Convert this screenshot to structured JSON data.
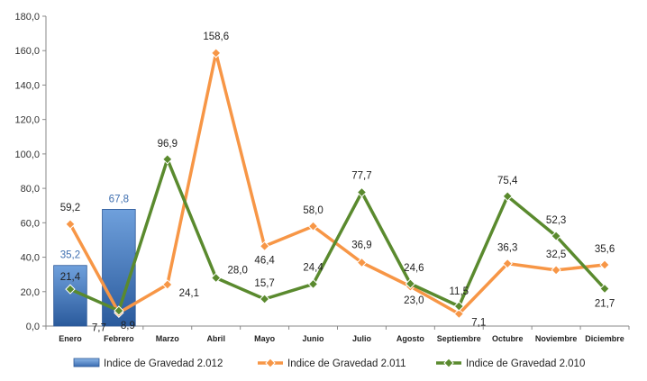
{
  "chart_data": {
    "type": "bar",
    "categories": [
      "Enero",
      "Febrero",
      "Marzo",
      "Abril",
      "Mayo",
      "Junio",
      "Julio",
      "Agosto",
      "Septiembre",
      "Octubre",
      "Noviembre",
      "Diciembre"
    ],
    "ylim": [
      0,
      180
    ],
    "yticks": [
      0,
      20,
      40,
      60,
      80,
      100,
      120,
      140,
      160,
      180
    ],
    "ytick_labels": [
      "0,0",
      "20,0",
      "40,0",
      "60,0",
      "80,0",
      "100,0",
      "120,0",
      "140,0",
      "160,0",
      "180,0"
    ],
    "grid": false,
    "legend_position": "bottom",
    "series": [
      {
        "name": "Indice de Gravedad 2.012",
        "type": "bar",
        "color": "#4a7cc4",
        "values": [
          35.2,
          67.8,
          null,
          null,
          null,
          null,
          null,
          null,
          null,
          null,
          null,
          null
        ],
        "labels": [
          "35,2",
          "67,8",
          null,
          null,
          null,
          null,
          null,
          null,
          null,
          null,
          null,
          null
        ]
      },
      {
        "name": "Indice de Gravedad 2.011",
        "type": "line",
        "color": "#f79646",
        "values": [
          59.2,
          7.7,
          24.1,
          158.6,
          46.4,
          58.0,
          36.9,
          23.0,
          7.1,
          36.3,
          32.5,
          35.6
        ],
        "labels": [
          "59,2",
          "7,7",
          "24,1",
          "158,6",
          "46,4",
          "58,0",
          "36,9",
          "23,0",
          "7,1",
          "36,3",
          "32,5",
          "35,6"
        ]
      },
      {
        "name": "Indice de Gravedad 2.010",
        "type": "line",
        "color": "#5a8a2e",
        "values": [
          21.4,
          8.9,
          96.9,
          28.0,
          15.7,
          24.4,
          77.7,
          24.6,
          11.5,
          75.4,
          52.3,
          21.7
        ],
        "labels": [
          "21,4",
          "8,9",
          "96,9",
          "28,0",
          "15,7",
          "24,4",
          "77,7",
          "24,6",
          "11,5",
          "75,4",
          "52,3",
          "21,7"
        ]
      }
    ]
  }
}
